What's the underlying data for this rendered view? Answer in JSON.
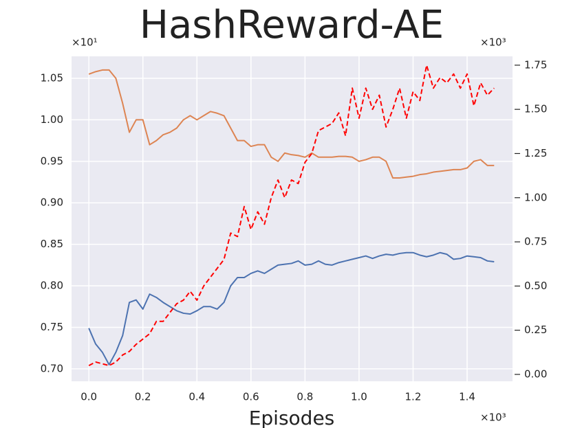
{
  "chart_data": {
    "type": "line",
    "title": "HashReward-AE",
    "xlabel": "Episodes",
    "y_offset_text": "×10¹",
    "y2_offset_text": "×10³",
    "x_offset_text": "×10³",
    "x": [
      0,
      0.025,
      0.05,
      0.075,
      0.1,
      0.125,
      0.15,
      0.175,
      0.2,
      0.225,
      0.25,
      0.275,
      0.3,
      0.325,
      0.35,
      0.375,
      0.4,
      0.425,
      0.45,
      0.475,
      0.5,
      0.525,
      0.55,
      0.575,
      0.6,
      0.625,
      0.65,
      0.675,
      0.7,
      0.725,
      0.75,
      0.775,
      0.8,
      0.825,
      0.85,
      0.875,
      0.9,
      0.925,
      0.95,
      0.975,
      1.0,
      1.025,
      1.05,
      1.075,
      1.1,
      1.125,
      1.15,
      1.175,
      1.2,
      1.225,
      1.25,
      1.275,
      1.3,
      1.325,
      1.35,
      1.375,
      1.4,
      1.425,
      1.45,
      1.475,
      1.5
    ],
    "series": [
      {
        "color": "#4c72b0",
        "linestyle": "solid",
        "axis": "y",
        "values": [
          0.749,
          0.73,
          0.72,
          0.705,
          0.72,
          0.74,
          0.78,
          0.783,
          0.772,
          0.79,
          0.786,
          0.78,
          0.775,
          0.77,
          0.767,
          0.766,
          0.77,
          0.775,
          0.775,
          0.772,
          0.78,
          0.8,
          0.81,
          0.81,
          0.815,
          0.818,
          0.815,
          0.82,
          0.825,
          0.826,
          0.827,
          0.83,
          0.825,
          0.826,
          0.83,
          0.826,
          0.825,
          0.828,
          0.83,
          0.832,
          0.834,
          0.836,
          0.833,
          0.836,
          0.838,
          0.837,
          0.839,
          0.84,
          0.84,
          0.837,
          0.835,
          0.837,
          0.84,
          0.838,
          0.832,
          0.833,
          0.836,
          0.835,
          0.834,
          0.83,
          0.829
        ]
      },
      {
        "color": "#dd8452",
        "linestyle": "solid",
        "axis": "y",
        "values": [
          1.055,
          1.058,
          1.06,
          1.06,
          1.05,
          1.02,
          0.985,
          1.0,
          1.0,
          0.97,
          0.975,
          0.982,
          0.985,
          0.99,
          1.0,
          1.005,
          1.0,
          1.005,
          1.01,
          1.008,
          1.005,
          0.99,
          0.975,
          0.975,
          0.968,
          0.97,
          0.97,
          0.955,
          0.95,
          0.96,
          0.958,
          0.957,
          0.955,
          0.96,
          0.955,
          0.955,
          0.955,
          0.956,
          0.956,
          0.955,
          0.95,
          0.952,
          0.955,
          0.955,
          0.95,
          0.93,
          0.93,
          0.931,
          0.932,
          0.934,
          0.935,
          0.937,
          0.938,
          0.939,
          0.94,
          0.94,
          0.942,
          0.95,
          0.952,
          0.945,
          0.945
        ]
      },
      {
        "color": "#ff0000",
        "linestyle": "dashed",
        "axis": "y2",
        "values": [
          0.05,
          0.07,
          0.06,
          0.05,
          0.07,
          0.11,
          0.13,
          0.17,
          0.2,
          0.23,
          0.3,
          0.3,
          0.35,
          0.4,
          0.42,
          0.47,
          0.42,
          0.5,
          0.55,
          0.6,
          0.65,
          0.8,
          0.78,
          0.95,
          0.82,
          0.92,
          0.85,
          1.0,
          1.1,
          1.0,
          1.1,
          1.08,
          1.2,
          1.25,
          1.38,
          1.4,
          1.42,
          1.48,
          1.35,
          1.62,
          1.45,
          1.62,
          1.5,
          1.58,
          1.4,
          1.5,
          1.62,
          1.45,
          1.6,
          1.55,
          1.75,
          1.62,
          1.68,
          1.65,
          1.7,
          1.62,
          1.7,
          1.52,
          1.65,
          1.58,
          1.62
        ]
      }
    ],
    "xlim": [
      -0.064,
      1.568
    ],
    "xticks": [
      {
        "value": 0,
        "label": "0.0"
      },
      {
        "value": 0.2,
        "label": "0.2"
      },
      {
        "value": 0.4,
        "label": "0.4"
      },
      {
        "value": 0.6,
        "label": "0.6"
      },
      {
        "value": 0.8,
        "label": "0.8"
      },
      {
        "value": 1.0,
        "label": "1.0"
      },
      {
        "value": 1.2,
        "label": "1.2"
      },
      {
        "value": 1.4,
        "label": "1.4"
      }
    ],
    "ylim": [
      0.685,
      1.0765
    ],
    "yticks": [
      {
        "value": 0.7,
        "label": "0.70"
      },
      {
        "value": 0.75,
        "label": "0.75"
      },
      {
        "value": 0.8,
        "label": "0.80"
      },
      {
        "value": 0.85,
        "label": "0.85"
      },
      {
        "value": 0.9,
        "label": "0.90"
      },
      {
        "value": 0.95,
        "label": "0.95"
      },
      {
        "value": 1.0,
        "label": "1.00"
      },
      {
        "value": 1.05,
        "label": "1.05"
      }
    ],
    "y2lim": [
      -0.039,
      1.8
    ],
    "y2ticks": [
      {
        "value": 0,
        "label": "0.00"
      },
      {
        "value": 0.25,
        "label": "0.25"
      },
      {
        "value": 0.5,
        "label": "0.50"
      },
      {
        "value": 0.75,
        "label": "0.75"
      },
      {
        "value": 1.0,
        "label": "1.00"
      },
      {
        "value": 1.25,
        "label": "1.25"
      },
      {
        "value": 1.5,
        "label": "1.50"
      },
      {
        "value": 1.75,
        "label": "1.75"
      }
    ],
    "grid": true
  }
}
